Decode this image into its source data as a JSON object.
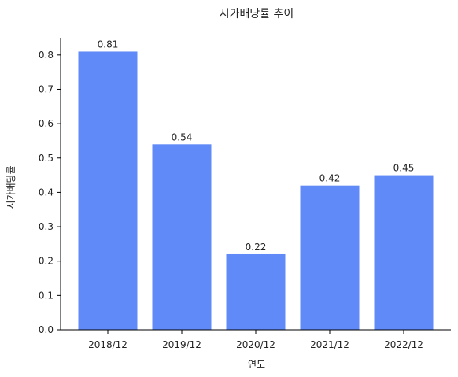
{
  "chart_data": {
    "type": "bar",
    "title": "시가배당률 추이",
    "xlabel": "연도",
    "ylabel": "시가배당률",
    "categories": [
      "2018/12",
      "2019/12",
      "2020/12",
      "2021/12",
      "2022/12"
    ],
    "values": [
      0.81,
      0.54,
      0.22,
      0.42,
      0.45
    ],
    "data_labels": [
      "0.81",
      "0.54",
      "0.22",
      "0.42",
      "0.45"
    ],
    "yticks": [
      "0.0",
      "0.1",
      "0.2",
      "0.3",
      "0.4",
      "0.5",
      "0.6",
      "0.7",
      "0.8"
    ],
    "ylim": [
      0,
      0.85
    ],
    "grid": false,
    "bar_color": "#608af7"
  }
}
